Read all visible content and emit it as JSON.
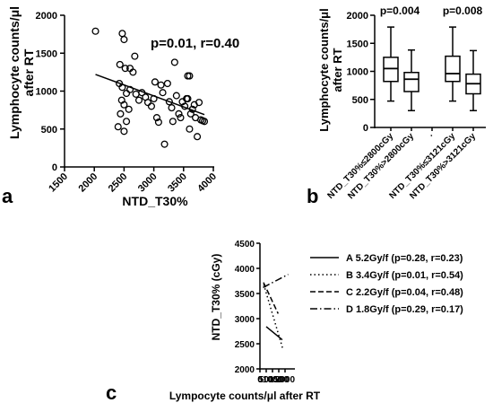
{
  "chart_data": [
    {
      "panel": "a",
      "type": "scatter",
      "annotation": "p=0.01, r=0.40",
      "xlabel": "NTD_T30%",
      "ylabel_lines": [
        "Lymphocyte counts/μl",
        "after RT"
      ],
      "xlim": [
        1500,
        4000
      ],
      "ylim": [
        0,
        2000
      ],
      "xticks": [
        "1500",
        "2000",
        "2500",
        "3000",
        "3500",
        "4000"
      ],
      "yticks": [
        "0",
        "500",
        "1000",
        "1500",
        "2000"
      ],
      "points": [
        {
          "x": 2020,
          "y": 1790
        },
        {
          "x": 2470,
          "y": 1760
        },
        {
          "x": 2500,
          "y": 1680
        },
        {
          "x": 2430,
          "y": 1350
        },
        {
          "x": 2520,
          "y": 1300
        },
        {
          "x": 2600,
          "y": 1300
        },
        {
          "x": 2680,
          "y": 1460
        },
        {
          "x": 2650,
          "y": 1250
        },
        {
          "x": 2420,
          "y": 1100
        },
        {
          "x": 2470,
          "y": 1050
        },
        {
          "x": 2540,
          "y": 970
        },
        {
          "x": 2600,
          "y": 1020
        },
        {
          "x": 2460,
          "y": 880
        },
        {
          "x": 2500,
          "y": 820
        },
        {
          "x": 2580,
          "y": 760
        },
        {
          "x": 2440,
          "y": 700
        },
        {
          "x": 2540,
          "y": 600
        },
        {
          "x": 2400,
          "y": 530
        },
        {
          "x": 2500,
          "y": 470
        },
        {
          "x": 2700,
          "y": 960
        },
        {
          "x": 2750,
          "y": 880
        },
        {
          "x": 2800,
          "y": 980
        },
        {
          "x": 2860,
          "y": 920
        },
        {
          "x": 2900,
          "y": 850
        },
        {
          "x": 2960,
          "y": 800
        },
        {
          "x": 3000,
          "y": 900
        },
        {
          "x": 3020,
          "y": 1120
        },
        {
          "x": 3050,
          "y": 650
        },
        {
          "x": 3080,
          "y": 590
        },
        {
          "x": 3120,
          "y": 1080
        },
        {
          "x": 3150,
          "y": 980
        },
        {
          "x": 3180,
          "y": 300
        },
        {
          "x": 3230,
          "y": 1100
        },
        {
          "x": 3260,
          "y": 860
        },
        {
          "x": 3300,
          "y": 780
        },
        {
          "x": 3320,
          "y": 600
        },
        {
          "x": 3350,
          "y": 1380
        },
        {
          "x": 3380,
          "y": 940
        },
        {
          "x": 3420,
          "y": 700
        },
        {
          "x": 3450,
          "y": 650
        },
        {
          "x": 3480,
          "y": 860
        },
        {
          "x": 3520,
          "y": 800
        },
        {
          "x": 3550,
          "y": 900
        },
        {
          "x": 3570,
          "y": 1200
        },
        {
          "x": 3600,
          "y": 1200
        },
        {
          "x": 3620,
          "y": 700
        },
        {
          "x": 3650,
          "y": 760
        },
        {
          "x": 3680,
          "y": 820
        },
        {
          "x": 3700,
          "y": 650
        },
        {
          "x": 3730,
          "y": 400
        },
        {
          "x": 3760,
          "y": 850
        },
        {
          "x": 3790,
          "y": 620
        },
        {
          "x": 3820,
          "y": 610
        },
        {
          "x": 3850,
          "y": 600
        },
        {
          "x": 3600,
          "y": 500
        },
        {
          "x": 3570,
          "y": 900
        }
      ],
      "fit_line": {
        "x": [
          2020,
          3850
        ],
        "y": [
          1220,
          690
        ]
      }
    },
    {
      "panel": "b",
      "type": "box",
      "ylabel_lines": [
        "Lymphocyte counts/μl",
        "after RT"
      ],
      "ylim": [
        0,
        2000
      ],
      "yticks": [
        "0",
        "500",
        "1000",
        "1500",
        "2000"
      ],
      "categories": [
        "NTD_T30%≤2800cGy",
        "NTD_T30%>2800cGy",
        "·",
        "NTD_T30%≤3121cGy",
        "NTD_T30%>3121cGy"
      ],
      "annotations": [
        "p=0.004",
        "p=0.008"
      ],
      "boxes": [
        {
          "category_index": 0,
          "min": 470,
          "q1": 820,
          "median": 1050,
          "q3": 1250,
          "max": 1790
        },
        {
          "category_index": 1,
          "min": 300,
          "q1": 640,
          "median": 860,
          "q3": 980,
          "max": 1380
        },
        {
          "category_index": 3,
          "min": 470,
          "q1": 820,
          "median": 960,
          "q3": 1270,
          "max": 1790
        },
        {
          "category_index": 4,
          "min": 300,
          "q1": 600,
          "median": 780,
          "q3": 950,
          "max": 1370
        }
      ]
    },
    {
      "panel": "c",
      "type": "line",
      "xlabel": "Lympocyte counts/μl after RT",
      "ylabel": "NTD_T30% (cGy)",
      "xlim": [
        0,
        2200
      ],
      "ylim": [
        2000,
        4500
      ],
      "xticks": [
        "0",
        "500",
        "1000",
        "1500",
        "2000"
      ],
      "yticks": [
        "2000",
        "2500",
        "3000",
        "3500",
        "4000",
        "4500"
      ],
      "series": [
        {
          "name": "A 5.2Gy/f (p=0.28, r=0.23)",
          "dash": "solid",
          "x": [
            500,
            1780
          ],
          "y": [
            2840,
            2580
          ]
        },
        {
          "name": "B 3.4Gy/f (p=0.01, r=0.54)",
          "dash": "dot",
          "x": [
            300,
            1820
          ],
          "y": [
            3680,
            2400
          ]
        },
        {
          "name": "C 2.2Gy/f (p=0.04, r=0.48)",
          "dash": "dash",
          "x": [
            280,
            1450
          ],
          "y": [
            3720,
            3100
          ]
        },
        {
          "name": "D 1.8Gy/f (p=0.29, r=0.17)",
          "dash": "dashdot",
          "x": [
            250,
            2250
          ],
          "y": [
            3620,
            3880
          ]
        }
      ]
    }
  ],
  "panel_labels": {
    "a": "a",
    "b": "b",
    "c": "c"
  }
}
